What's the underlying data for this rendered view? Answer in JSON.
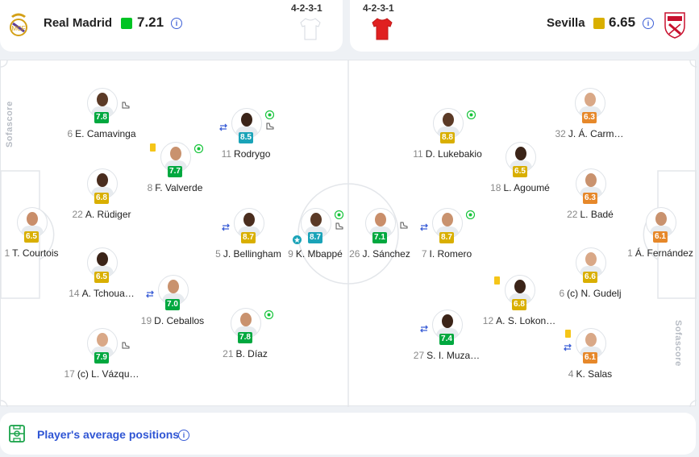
{
  "home": {
    "name": "Real Madrid",
    "rating": "7.21",
    "rating_color": "#00c424",
    "formation": "4-2-3-1",
    "kit_color": "#ffffff"
  },
  "away": {
    "name": "Sevilla",
    "rating": "6.65",
    "rating_color": "#d9af00",
    "formation": "4-2-3-1",
    "kit_color": "#e02020"
  },
  "watermark": "Sofascore",
  "colors": {
    "rating_green": "#00a83f",
    "rating_bright_green": "#00c424",
    "rating_yellow": "#d9af00",
    "rating_orange": "#e6882a",
    "rating_teal": "#1aa3b8",
    "accent_blue": "#2f55d4",
    "yellow_card": "#f5c518",
    "goal_badge": "#16c43a"
  },
  "players": [
    {
      "number": "1",
      "name": "T. Courtois",
      "rating": "6.5",
      "rating_class": "yellow",
      "side": "home"
    },
    {
      "number": "6",
      "name": "E. Camavinga",
      "rating": "7.8",
      "rating_class": "green",
      "side": "home"
    },
    {
      "number": "22",
      "name": "A. Rüdiger",
      "rating": "6.8",
      "rating_class": "yellow",
      "side": "home"
    },
    {
      "number": "14",
      "name": "A. Tchoua…",
      "rating": "6.5",
      "rating_class": "yellow",
      "side": "home"
    },
    {
      "number": "17",
      "name": "(c) L. Vázqu…",
      "rating": "7.9",
      "rating_class": "green",
      "side": "home"
    },
    {
      "number": "8",
      "name": "F. Valverde",
      "rating": "7.7",
      "rating_class": "green",
      "side": "home"
    },
    {
      "number": "19",
      "name": "D. Ceballos",
      "rating": "7.0",
      "rating_class": "green",
      "side": "home"
    },
    {
      "number": "11",
      "name": "Rodrygo",
      "rating": "8.5",
      "rating_class": "teal",
      "side": "home"
    },
    {
      "number": "5",
      "name": "J. Bellingham",
      "rating": "8.7",
      "rating_class": "yellow",
      "side": "home"
    },
    {
      "number": "21",
      "name": "B. Díaz",
      "rating": "7.8",
      "rating_class": "green",
      "side": "home"
    },
    {
      "number": "9",
      "name": "K. Mbappé",
      "rating": "8.7",
      "rating_class": "teal",
      "side": "home"
    },
    {
      "number": "26",
      "name": "J. Sánchez",
      "rating": "7.1",
      "rating_class": "green",
      "side": "away"
    },
    {
      "number": "11",
      "name": "D. Lukebakio",
      "rating": "8.8",
      "rating_class": "yellow",
      "side": "away"
    },
    {
      "number": "7",
      "name": "I. Romero",
      "rating": "8.7",
      "rating_class": "yellow",
      "side": "away"
    },
    {
      "number": "27",
      "name": "S. I. Muza…",
      "rating": "7.4",
      "rating_class": "green",
      "side": "away"
    },
    {
      "number": "18",
      "name": "L. Agoumé",
      "rating": "6.5",
      "rating_class": "yellow",
      "side": "away"
    },
    {
      "number": "12",
      "name": "A. S. Lokon…",
      "rating": "6.8",
      "rating_class": "yellow",
      "side": "away"
    },
    {
      "number": "32",
      "name": "J. Á. Carm…",
      "rating": "6.3",
      "rating_class": "orange",
      "side": "away"
    },
    {
      "number": "22",
      "name": "L. Badé",
      "rating": "6.3",
      "rating_class": "orange",
      "side": "away"
    },
    {
      "number": "6",
      "name": "(c) N. Gudelj",
      "rating": "6.6",
      "rating_class": "yellow",
      "side": "away"
    },
    {
      "number": "4",
      "name": "K. Salas",
      "rating": "6.1",
      "rating_class": "orange",
      "side": "away"
    },
    {
      "number": "1",
      "name": "Á. Fernández",
      "rating": "6.1",
      "rating_class": "orange",
      "side": "away"
    }
  ],
  "footer": {
    "label": "Player's average positions"
  }
}
